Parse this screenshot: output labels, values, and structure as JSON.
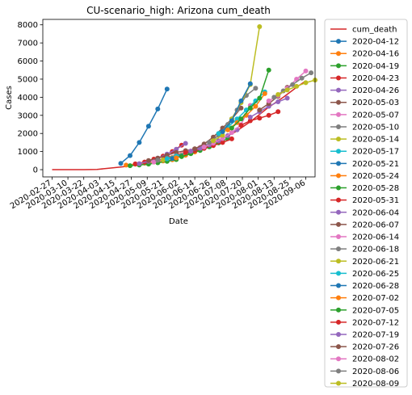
{
  "chart_data": {
    "type": "line",
    "title": "CU-scenario_high: Arizona cum_death",
    "xlabel": "Date",
    "ylabel": "Cases",
    "ylim": [
      -400,
      8300
    ],
    "y_ticks": [
      0,
      1000,
      2000,
      3000,
      4000,
      5000,
      6000,
      7000,
      8000
    ],
    "xlim": [
      "2020-02-20",
      "2020-09-13"
    ],
    "x_ticks": [
      "2020-02-27",
      "2020-03-10",
      "2020-03-22",
      "2020-04-03",
      "2020-04-15",
      "2020-04-27",
      "2020-05-09",
      "2020-05-21",
      "2020-06-02",
      "2020-06-14",
      "2020-06-26",
      "2020-07-08",
      "2020-07-20",
      "2020-08-01",
      "2020-08-13",
      "2020-08-25",
      "2020-09-06"
    ],
    "grid": false,
    "legend_position": "outside-right",
    "series": [
      {
        "name": "cum_death",
        "color": "#d62728",
        "marker": false,
        "points": [
          [
            "2020-02-27",
            0
          ],
          [
            "2020-03-22",
            0
          ],
          [
            "2020-04-01",
            10
          ],
          [
            "2020-04-10",
            80
          ],
          [
            "2020-04-22",
            170
          ],
          [
            "2020-05-04",
            300
          ],
          [
            "2020-05-16",
            480
          ],
          [
            "2020-05-28",
            760
          ],
          [
            "2020-06-09",
            1000
          ],
          [
            "2020-06-21",
            1300
          ],
          [
            "2020-07-03",
            1650
          ],
          [
            "2020-07-15",
            2100
          ],
          [
            "2020-07-27",
            2700
          ],
          [
            "2020-08-08",
            3400
          ],
          [
            "2020-08-20",
            4000
          ],
          [
            "2020-08-31",
            4600
          ],
          [
            "2020-09-06",
            4900
          ]
        ]
      },
      {
        "name": "2020-04-12",
        "color": "#1f77b4",
        "marker": true,
        "points": [
          [
            "2020-04-19",
            350
          ],
          [
            "2020-04-26",
            780
          ],
          [
            "2020-05-03",
            1500
          ],
          [
            "2020-05-10",
            2400
          ],
          [
            "2020-05-17",
            3350
          ],
          [
            "2020-05-24",
            4450
          ]
        ]
      },
      {
        "name": "2020-04-16",
        "color": "#ff7f0e",
        "marker": true,
        "points": [
          [
            "2020-04-23",
            250
          ],
          [
            "2020-04-30",
            300
          ],
          [
            "2020-05-07",
            360
          ],
          [
            "2020-05-14",
            420
          ],
          [
            "2020-05-21",
            480
          ],
          [
            "2020-05-28",
            550
          ]
        ]
      },
      {
        "name": "2020-04-19",
        "color": "#2ca02c",
        "marker": true,
        "points": [
          [
            "2020-04-26",
            220
          ],
          [
            "2020-05-03",
            260
          ],
          [
            "2020-05-10",
            310
          ],
          [
            "2020-05-17",
            380
          ],
          [
            "2020-05-24",
            460
          ],
          [
            "2020-05-31",
            560
          ]
        ]
      },
      {
        "name": "2020-04-23",
        "color": "#d62728",
        "marker": true,
        "points": [
          [
            "2020-04-30",
            320
          ],
          [
            "2020-05-07",
            420
          ],
          [
            "2020-05-14",
            580
          ],
          [
            "2020-05-21",
            750
          ],
          [
            "2020-05-28",
            1000
          ],
          [
            "2020-06-04",
            1350
          ]
        ]
      },
      {
        "name": "2020-04-26",
        "color": "#9467bd",
        "marker": true,
        "points": [
          [
            "2020-05-03",
            330
          ],
          [
            "2020-05-10",
            460
          ],
          [
            "2020-05-17",
            640
          ],
          [
            "2020-05-24",
            860
          ],
          [
            "2020-05-31",
            1130
          ],
          [
            "2020-06-07",
            1450
          ]
        ]
      },
      {
        "name": "2020-05-03",
        "color": "#8c564b",
        "marker": true,
        "points": [
          [
            "2020-05-10",
            500
          ],
          [
            "2020-05-17",
            640
          ],
          [
            "2020-05-24",
            800
          ],
          [
            "2020-05-31",
            950
          ],
          [
            "2020-06-07",
            1050
          ],
          [
            "2020-06-14",
            1150
          ]
        ]
      },
      {
        "name": "2020-05-07",
        "color": "#e377c2",
        "marker": true,
        "points": [
          [
            "2020-05-14",
            420
          ],
          [
            "2020-05-21",
            540
          ],
          [
            "2020-05-28",
            690
          ],
          [
            "2020-06-04",
            850
          ],
          [
            "2020-06-11",
            1030
          ],
          [
            "2020-06-18",
            1230
          ]
        ]
      },
      {
        "name": "2020-05-10",
        "color": "#7f7f7f",
        "marker": true,
        "points": [
          [
            "2020-05-17",
            520
          ],
          [
            "2020-05-24",
            640
          ],
          [
            "2020-05-31",
            780
          ],
          [
            "2020-06-07",
            940
          ],
          [
            "2020-06-14",
            1120
          ],
          [
            "2020-06-21",
            1320
          ]
        ]
      },
      {
        "name": "2020-05-14",
        "color": "#bcbd22",
        "marker": true,
        "points": [
          [
            "2020-05-21",
            540
          ],
          [
            "2020-05-28",
            660
          ],
          [
            "2020-06-04",
            800
          ],
          [
            "2020-06-11",
            960
          ],
          [
            "2020-06-18",
            1140
          ],
          [
            "2020-06-25",
            1340
          ]
        ]
      },
      {
        "name": "2020-05-17",
        "color": "#17becf",
        "marker": true,
        "points": [
          [
            "2020-05-24",
            600
          ],
          [
            "2020-05-31",
            740
          ],
          [
            "2020-06-07",
            900
          ],
          [
            "2020-06-14",
            1080
          ],
          [
            "2020-06-21",
            1280
          ],
          [
            "2020-06-28",
            1500
          ]
        ]
      },
      {
        "name": "2020-05-21",
        "color": "#1f77b4",
        "marker": true,
        "points": [
          [
            "2020-05-28",
            620
          ],
          [
            "2020-06-04",
            760
          ],
          [
            "2020-06-11",
            920
          ],
          [
            "2020-06-18",
            1100
          ],
          [
            "2020-06-25",
            1300
          ],
          [
            "2020-07-02",
            1520
          ]
        ]
      },
      {
        "name": "2020-05-24",
        "color": "#ff7f0e",
        "marker": true,
        "points": [
          [
            "2020-05-31",
            650
          ],
          [
            "2020-06-07",
            800
          ],
          [
            "2020-06-14",
            980
          ],
          [
            "2020-06-21",
            1180
          ],
          [
            "2020-06-28",
            1400
          ],
          [
            "2020-07-05",
            1640
          ]
        ]
      },
      {
        "name": "2020-05-28",
        "color": "#2ca02c",
        "marker": true,
        "points": [
          [
            "2020-06-04",
            720
          ],
          [
            "2020-06-11",
            880
          ],
          [
            "2020-06-18",
            1060
          ],
          [
            "2020-06-25",
            1260
          ],
          [
            "2020-07-02",
            1480
          ],
          [
            "2020-07-09",
            1720
          ]
        ]
      },
      {
        "name": "2020-05-31",
        "color": "#d62728",
        "marker": true,
        "points": [
          [
            "2020-06-07",
            950
          ],
          [
            "2020-06-14",
            1050
          ],
          [
            "2020-06-21",
            1180
          ],
          [
            "2020-06-28",
            1330
          ],
          [
            "2020-07-05",
            1500
          ],
          [
            "2020-07-12",
            1700
          ]
        ]
      },
      {
        "name": "2020-06-04",
        "color": "#9467bd",
        "marker": true,
        "points": [
          [
            "2020-06-11",
            1020
          ],
          [
            "2020-06-18",
            1180
          ],
          [
            "2020-06-25",
            1370
          ],
          [
            "2020-07-02",
            1600
          ],
          [
            "2020-07-09",
            1880
          ],
          [
            "2020-07-16",
            2200
          ]
        ]
      },
      {
        "name": "2020-06-07",
        "color": "#8c564b",
        "marker": true,
        "points": [
          [
            "2020-06-14",
            1150
          ],
          [
            "2020-06-21",
            1420
          ],
          [
            "2020-06-28",
            1800
          ],
          [
            "2020-07-05",
            2300
          ],
          [
            "2020-07-12",
            2800
          ],
          [
            "2020-07-19",
            3400
          ]
        ]
      },
      {
        "name": "2020-06-14",
        "color": "#e377c2",
        "marker": true,
        "points": [
          [
            "2020-06-21",
            1250
          ],
          [
            "2020-06-28",
            1460
          ],
          [
            "2020-07-05",
            1720
          ],
          [
            "2020-07-12",
            2050
          ],
          [
            "2020-07-19",
            2480
          ],
          [
            "2020-07-26",
            3550
          ]
        ]
      },
      {
        "name": "2020-06-18",
        "color": "#7f7f7f",
        "marker": true,
        "points": [
          [
            "2020-06-25",
            1500
          ],
          [
            "2020-07-02",
            1900
          ],
          [
            "2020-07-09",
            2500
          ],
          [
            "2020-07-16",
            3300
          ],
          [
            "2020-07-23",
            4100
          ],
          [
            "2020-07-30",
            4500
          ]
        ]
      },
      {
        "name": "2020-06-21",
        "color": "#bcbd22",
        "marker": true,
        "points": [
          [
            "2020-06-28",
            1600
          ],
          [
            "2020-07-05",
            1900
          ],
          [
            "2020-07-12",
            2800
          ],
          [
            "2020-07-19",
            3700
          ],
          [
            "2020-07-26",
            4700
          ],
          [
            "2020-08-02",
            7900
          ]
        ]
      },
      {
        "name": "2020-06-25",
        "color": "#17becf",
        "marker": true,
        "points": [
          [
            "2020-07-02",
            2000
          ],
          [
            "2020-07-09",
            2350
          ],
          [
            "2020-07-16",
            2800
          ],
          [
            "2020-07-23",
            3300
          ],
          [
            "2020-07-30",
            3800
          ],
          [
            "2020-08-06",
            4300
          ]
        ]
      },
      {
        "name": "2020-06-28",
        "color": "#1f77b4",
        "marker": true,
        "points": [
          [
            "2020-07-05",
            2100
          ],
          [
            "2020-07-12",
            2700
          ],
          [
            "2020-07-19",
            3800
          ],
          [
            "2020-07-26",
            4750
          ]
        ]
      },
      {
        "name": "2020-07-02",
        "color": "#ff7f0e",
        "marker": true,
        "points": [
          [
            "2020-07-09",
            2200
          ],
          [
            "2020-07-16",
            2600
          ],
          [
            "2020-07-23",
            3000
          ],
          [
            "2020-07-30",
            3500
          ],
          [
            "2020-08-06",
            4200
          ]
        ]
      },
      {
        "name": "2020-07-05",
        "color": "#2ca02c",
        "marker": true,
        "points": [
          [
            "2020-07-12",
            2300
          ],
          [
            "2020-07-19",
            2800
          ],
          [
            "2020-07-26",
            3400
          ],
          [
            "2020-08-02",
            3950
          ],
          [
            "2020-08-09",
            5500
          ]
        ]
      },
      {
        "name": "2020-07-12",
        "color": "#d62728",
        "marker": true,
        "points": [
          [
            "2020-07-19",
            2450
          ],
          [
            "2020-07-26",
            2700
          ],
          [
            "2020-08-02",
            2850
          ],
          [
            "2020-08-09",
            3000
          ],
          [
            "2020-08-16",
            3200
          ]
        ]
      },
      {
        "name": "2020-07-19",
        "color": "#9467bd",
        "marker": true,
        "points": [
          [
            "2020-07-26",
            2900
          ],
          [
            "2020-08-02",
            3200
          ],
          [
            "2020-08-09",
            3500
          ],
          [
            "2020-08-16",
            3750
          ],
          [
            "2020-08-23",
            3950
          ]
        ]
      },
      {
        "name": "2020-07-26",
        "color": "#8c564b",
        "marker": true,
        "points": [
          [
            "2020-08-02",
            3300
          ],
          [
            "2020-08-09",
            3650
          ],
          [
            "2020-08-16",
            4050
          ],
          [
            "2020-08-23",
            4550
          ]
        ]
      },
      {
        "name": "2020-08-02",
        "color": "#e377c2",
        "marker": true,
        "points": [
          [
            "2020-08-09",
            3800
          ],
          [
            "2020-08-16",
            4100
          ],
          [
            "2020-08-23",
            4500
          ],
          [
            "2020-08-30",
            5000
          ],
          [
            "2020-09-06",
            5450
          ]
        ]
      },
      {
        "name": "2020-08-06",
        "color": "#7f7f7f",
        "marker": true,
        "points": [
          [
            "2020-08-13",
            4000
          ],
          [
            "2020-08-20",
            4350
          ],
          [
            "2020-08-27",
            4700
          ],
          [
            "2020-09-03",
            5050
          ],
          [
            "2020-09-10",
            5350
          ]
        ]
      },
      {
        "name": "2020-08-09",
        "color": "#bcbd22",
        "marker": true,
        "points": [
          [
            "2020-08-16",
            4150
          ],
          [
            "2020-08-23",
            4400
          ],
          [
            "2020-08-30",
            4600
          ],
          [
            "2020-09-06",
            4800
          ],
          [
            "2020-09-13",
            4950
          ]
        ]
      }
    ]
  }
}
